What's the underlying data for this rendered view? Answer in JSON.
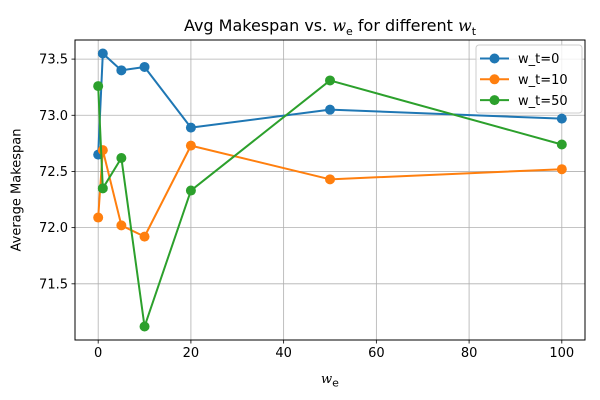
{
  "figure": {
    "title": {
      "prefix": "Avg Makespan vs. ",
      "var_e": "w",
      "sub_e": "e",
      "middle": " for different ",
      "var_t": "w",
      "sub_t": "t"
    },
    "xlabel": {
      "var": "w",
      "sub": "e"
    },
    "ylabel": "Average Makespan"
  },
  "chart_data": {
    "type": "line",
    "title": "Avg Makespan vs. w_e for different w_t",
    "xlabel": "w_e",
    "ylabel": "Average Makespan",
    "x": [
      0,
      1,
      5,
      10,
      20,
      50,
      100
    ],
    "series": [
      {
        "name": "w_t=0",
        "color": "#1f77b4",
        "marker": "circle",
        "values": [
          72.65,
          73.55,
          73.4,
          73.43,
          72.89,
          73.05,
          72.97
        ]
      },
      {
        "name": "w_t=10",
        "color": "#ff7f0e",
        "marker": "circle",
        "values": [
          72.09,
          72.69,
          72.02,
          71.92,
          72.73,
          72.43,
          72.52
        ]
      },
      {
        "name": "w_t=50",
        "color": "#2ca02c",
        "marker": "circle",
        "values": [
          73.26,
          72.35,
          72.62,
          71.12,
          72.33,
          73.31,
          72.74
        ]
      }
    ],
    "xlim": [
      -5,
      105
    ],
    "ylim": [
      71.0,
      73.67
    ],
    "xticks": [
      0,
      20,
      40,
      60,
      80,
      100
    ],
    "xtick_labels": [
      "0",
      "20",
      "40",
      "60",
      "80",
      "100"
    ],
    "yticks": [
      71.5,
      72.0,
      72.5,
      73.0,
      73.5
    ],
    "ytick_labels": [
      "71.5",
      "72.0",
      "72.5",
      "73.0",
      "73.5"
    ],
    "grid": true,
    "legend": {
      "position": "upper right",
      "labels": [
        "w_t=0",
        "w_t=10",
        "w_t=50"
      ]
    },
    "colors": {
      "grid": "#b0b0b0",
      "spine": "#000000",
      "legend_border": "#cccccc",
      "legend_bg": "#ffffff"
    }
  }
}
